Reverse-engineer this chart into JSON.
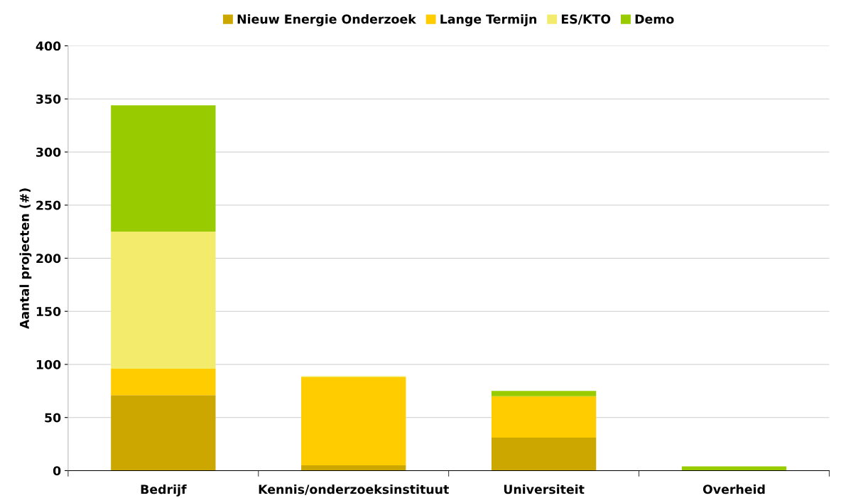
{
  "chart_data": {
    "type": "bar",
    "stacked": true,
    "ylabel": "Aantal projecten (#)",
    "categories": [
      "Bedrijf",
      "Kennis/onderzoeksinstituut",
      "Universiteit",
      "Overheid"
    ],
    "series": [
      {
        "name": "Nieuw Energie Onderzoek",
        "color": "#cca700",
        "values": [
          71,
          5,
          31,
          0
        ]
      },
      {
        "name": "Lange Termijn",
        "color": "#ffcc00",
        "values": [
          25,
          83,
          39,
          0
        ]
      },
      {
        "name": "ES/KTO",
        "color": "#f2eb6b",
        "values": [
          129,
          1,
          0,
          0
        ]
      },
      {
        "name": "Demo",
        "color": "#99cc00",
        "values": [
          119,
          0,
          5,
          4
        ]
      }
    ],
    "ylim": [
      0,
      400
    ],
    "yticks": [
      0,
      50,
      100,
      150,
      200,
      250,
      300,
      350,
      400
    ],
    "grid": "y",
    "legend": "top"
  }
}
